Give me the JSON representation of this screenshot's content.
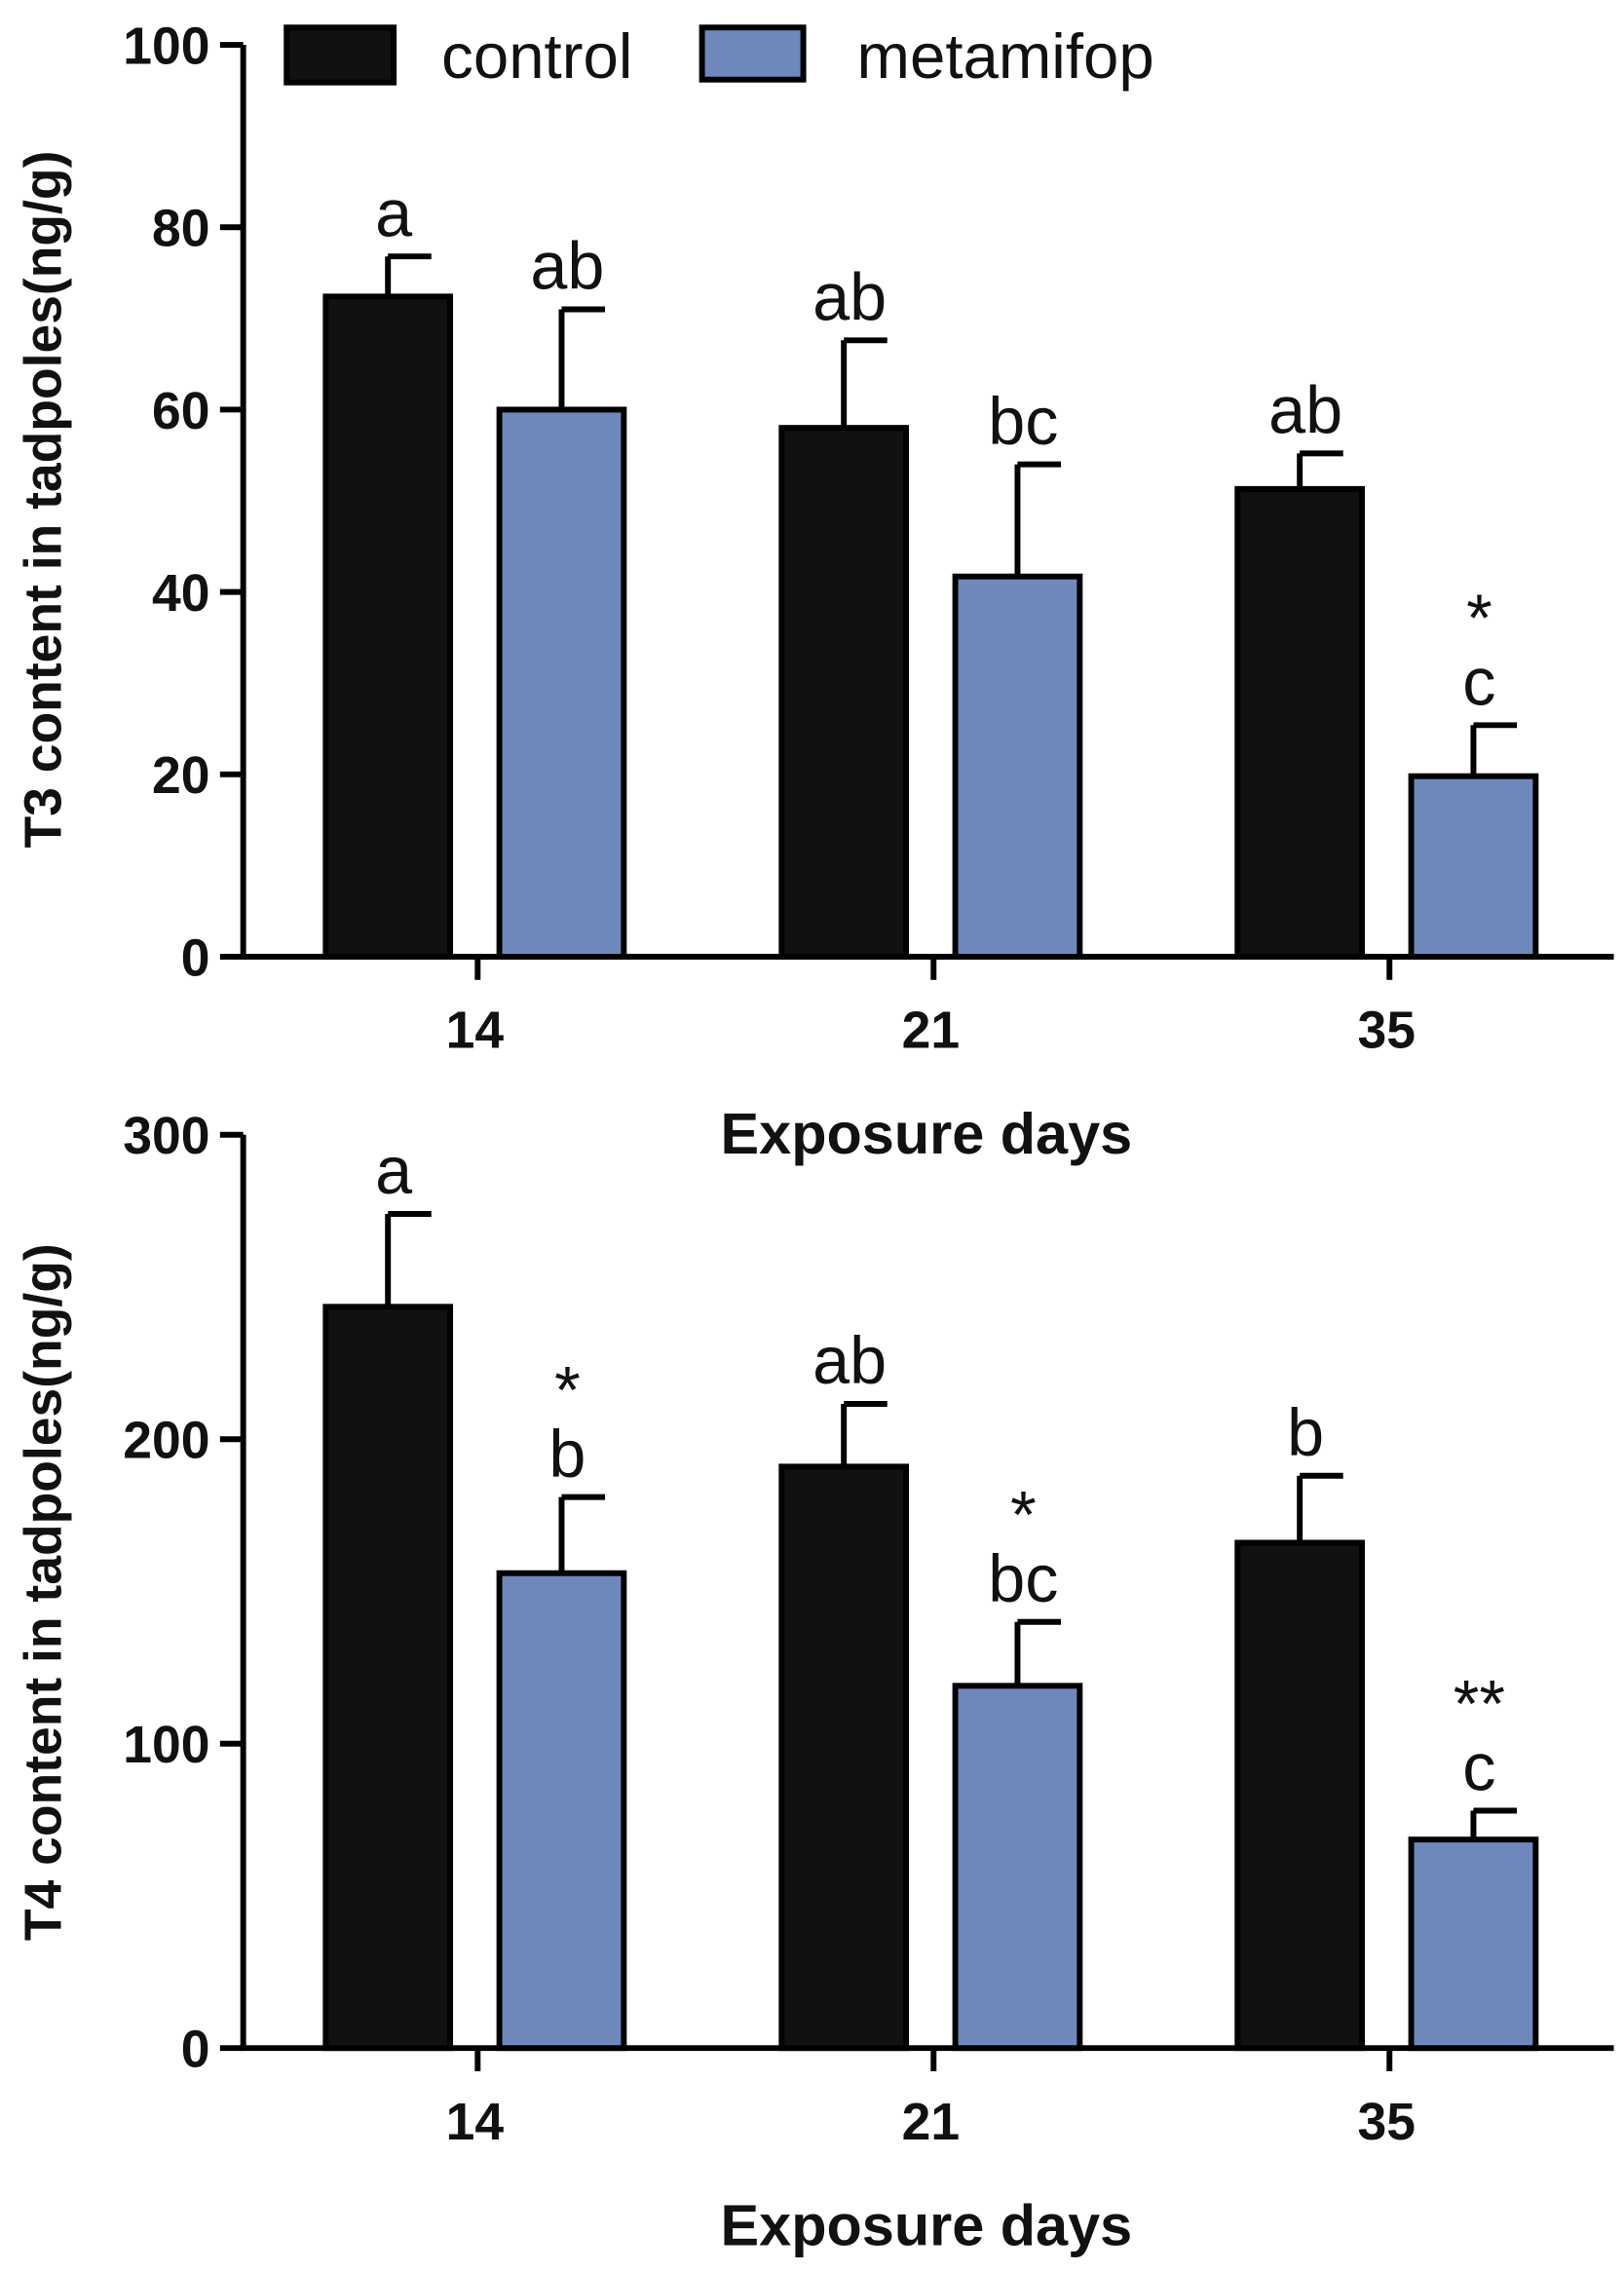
{
  "legend": [
    {
      "name": "control",
      "color": "#111111"
    },
    {
      "name": "metamifop",
      "color": "#6e88bb"
    }
  ],
  "chart_data": [
    {
      "type": "bar",
      "title": "",
      "xlabel": "Exposure days",
      "ylabel": "T3 content in tadpoles(ng/g)",
      "categories": [
        "14",
        "21",
        "35"
      ],
      "ylim": [
        0,
        100
      ],
      "yticks": [
        0,
        20,
        40,
        60,
        80,
        100
      ],
      "legend_position": "top",
      "series": [
        {
          "name": "control",
          "values": [
            72.4,
            58,
            51.3
          ],
          "errors": [
            4.4,
            9.6,
            3.9
          ],
          "labels": [
            "a",
            "ab",
            "ab"
          ],
          "stars": [
            "",
            "",
            ""
          ]
        },
        {
          "name": "metamifop",
          "values": [
            60,
            41.7,
            19.8
          ],
          "errors": [
            11,
            12.3,
            5.6
          ],
          "labels": [
            "ab",
            "bc",
            "c"
          ],
          "stars": [
            "",
            "",
            "*"
          ]
        }
      ]
    },
    {
      "type": "bar",
      "title": "",
      "xlabel": "Exposure days",
      "ylabel": "T4 content in tadpoles(ng/g)",
      "categories": [
        "14",
        "21",
        "35"
      ],
      "ylim": [
        0,
        300
      ],
      "yticks": [
        0,
        100,
        200,
        300
      ],
      "series": [
        {
          "name": "control",
          "values": [
            243.5,
            191,
            166
          ],
          "errors": [
            30.5,
            20.6,
            22
          ],
          "labels": [
            "a",
            "ab",
            "b"
          ],
          "stars": [
            "",
            "",
            ""
          ]
        },
        {
          "name": "metamifop",
          "values": [
            156,
            119,
            68.5
          ],
          "errors": [
            25,
            21,
            9.5
          ],
          "labels": [
            "b",
            "bc",
            "c"
          ],
          "stars": [
            "*",
            "*",
            "**"
          ]
        }
      ]
    }
  ]
}
